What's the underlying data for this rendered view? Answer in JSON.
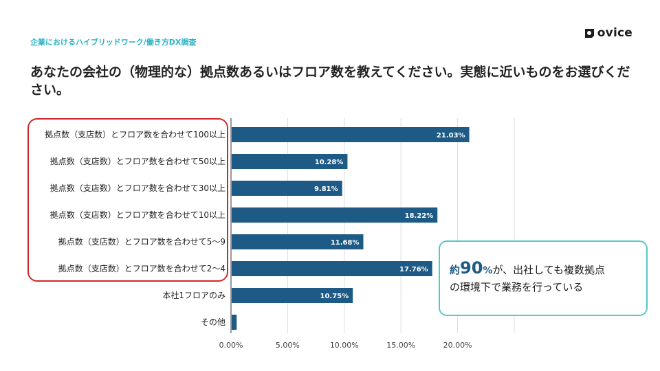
{
  "header": {
    "subtitle": "企業におけるハイブリッドワーク/働き方DX調査",
    "logo_text": "ovice",
    "logo_icon": "ovice-logo-icon"
  },
  "title": "あなたの会社の（物理的な）拠点数あるいはフロア数を教えてください。実態に近いものをお選びください。",
  "callout": {
    "prefix": "約",
    "number": "90",
    "percent": "%",
    "line1_rest": "が、出社しても複数拠点",
    "line2": "の環境下で業務を行っている"
  },
  "colors": {
    "bar": "#1d5a86",
    "highlight_border": "#d0272d",
    "callout_border": "#58c8c9",
    "subtitle": "#2ab3c6"
  },
  "chart_data": {
    "type": "bar",
    "orientation": "horizontal",
    "categories": [
      "拠点数（支店数）とフロア数を合わせて100以上",
      "拠点数（支店数）とフロア数を合わせて50以上",
      "拠点数（支店数）とフロア数を合わせて30以上",
      "拠点数（支店数）とフロア数を合わせて10以上",
      "拠点数（支店数）とフロア数を合わせて5〜9",
      "拠点数（支店数）とフロア数を合わせて2〜4",
      "本社1フロアのみ",
      "その他"
    ],
    "values": [
      21.03,
      10.28,
      9.81,
      18.22,
      11.68,
      17.76,
      10.75,
      0.5
    ],
    "data_labels": [
      "21.03%",
      "10.28%",
      "9.81%",
      "18.22%",
      "11.68%",
      "17.76%",
      "10.75%",
      ""
    ],
    "xlim": [
      0,
      25
    ],
    "xticks": [
      0,
      5,
      10,
      15,
      20,
      25
    ],
    "xtick_labels": [
      "0.00%",
      "5.00%",
      "10.00%",
      "15.00%",
      "20.00%",
      ""
    ],
    "grid": true,
    "highlighted_categories": [
      0,
      1,
      2,
      3,
      4,
      5
    ]
  }
}
